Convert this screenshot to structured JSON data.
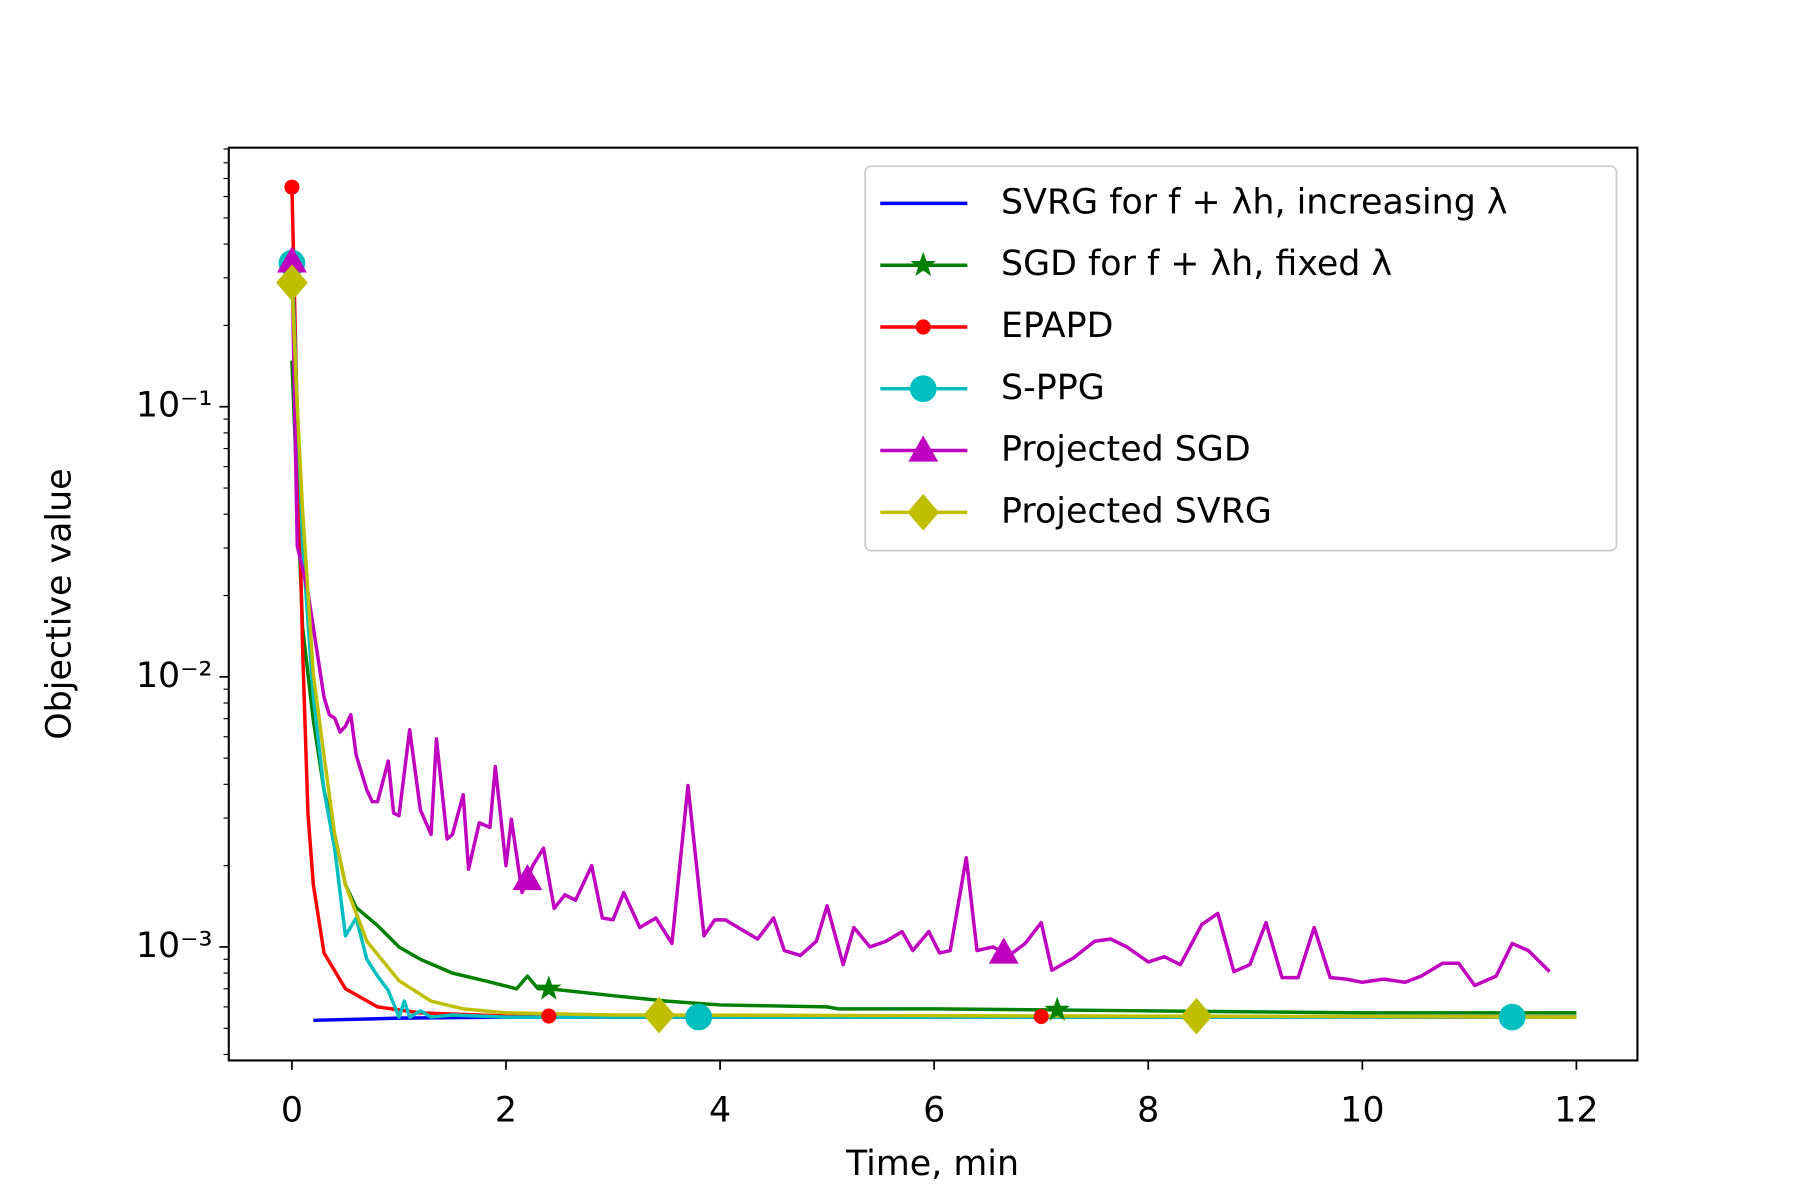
{
  "chart_data": {
    "type": "line",
    "xlabel": "Time, min",
    "ylabel": "Objective value",
    "log_y": true,
    "legend": "upper right",
    "xlim": [
      -0.59,
      12.57
    ],
    "ylim": [
      0.00038,
      0.91
    ],
    "xticks": [
      0,
      2,
      4,
      6,
      8,
      10,
      12
    ],
    "yticks": [
      {
        "value": 0.001,
        "label": "10⁻³"
      },
      {
        "value": 0.01,
        "label": "10⁻²"
      },
      {
        "value": 0.1,
        "label": "10⁻¹"
      }
    ],
    "yminorticks": [
      0.0004,
      0.0005,
      0.0006,
      0.0007,
      0.0008,
      0.0009,
      0.002,
      0.003,
      0.004,
      0.005,
      0.006,
      0.007,
      0.008,
      0.009,
      0.02,
      0.03,
      0.04,
      0.05,
      0.06,
      0.07,
      0.08,
      0.09,
      0.2,
      0.3,
      0.4,
      0.5,
      0.6,
      0.7,
      0.8,
      0.9
    ],
    "series": [
      {
        "name": "SVRG for f + λh, increasing λ",
        "color": "#0000ff",
        "marker": "none",
        "x": [
          0.2,
          1,
          2,
          12
        ],
        "values": [
          0.000535,
          0.000545,
          0.00055,
          0.00055
        ],
        "marker_x": []
      },
      {
        "name": "SGD for f + λh, fixed λ",
        "color": "#008000",
        "marker": "star",
        "x": [
          0,
          0.1,
          0.2,
          0.3,
          0.4,
          0.5,
          0.6,
          0.8,
          1,
          1.2,
          1.5,
          1.8,
          2.1,
          2.2,
          2.3,
          2.4,
          3,
          3.5,
          4,
          5,
          5.1,
          6,
          8,
          10,
          12
        ],
        "values": [
          0.148,
          0.0152,
          0.0069,
          0.0038,
          0.0026,
          0.0017,
          0.0014,
          0.0012,
          0.001,
          0.0009,
          0.0008,
          0.00075,
          0.0007,
          0.00078,
          0.0007,
          0.0007,
          0.00066,
          0.00063,
          0.00061,
          0.0006,
          0.00059,
          0.00059,
          0.00058,
          0.00057,
          0.00057
        ],
        "marker_x": [
          2.4,
          7.15
        ]
      },
      {
        "name": "EPAPD",
        "color": "#ff0000",
        "marker": "dot",
        "x": [
          0,
          0.1,
          0.15,
          0.2,
          0.3,
          0.5,
          0.8,
          1.2,
          2,
          12
        ],
        "values": [
          0.65,
          0.0126,
          0.0031,
          0.0017,
          0.00095,
          0.0007,
          0.0006,
          0.00057,
          0.000555,
          0.00055
        ],
        "marker_x": [
          0,
          2.4,
          7.0
        ]
      },
      {
        "name": "S-PPG",
        "color": "#00bfbf",
        "marker": "circle",
        "x": [
          0,
          0.1,
          0.2,
          0.3,
          0.4,
          0.5,
          0.6,
          0.7,
          0.8,
          0.9,
          1.0,
          1.05,
          1.1,
          1.2,
          1.3,
          1.5,
          2,
          12
        ],
        "values": [
          0.34,
          0.0305,
          0.0084,
          0.0038,
          0.0023,
          0.0011,
          0.00128,
          0.0009,
          0.00078,
          0.00069,
          0.00055,
          0.00063,
          0.00055,
          0.00058,
          0.00055,
          0.00056,
          0.00055,
          0.00055
        ],
        "marker_x": [
          0,
          3.8,
          11.4
        ]
      },
      {
        "name": "Projected SGD",
        "color": "#bf00bf",
        "marker": "triangle",
        "x": [
          0,
          0.05,
          0.15,
          0.25,
          0.3,
          0.35,
          0.4,
          0.45,
          0.5,
          0.55,
          0.6,
          0.7,
          0.75,
          0.8,
          0.9,
          0.95,
          1.0,
          1.1,
          1.2,
          1.3,
          1.35,
          1.45,
          1.5,
          1.6,
          1.65,
          1.75,
          1.85,
          1.9,
          2.0,
          2.05,
          2.15,
          2.25,
          2.35,
          2.45,
          2.55,
          2.65,
          2.8,
          2.9,
          3.0,
          3.1,
          3.25,
          3.4,
          3.55,
          3.7,
          3.85,
          3.95,
          4.05,
          4.2,
          4.35,
          4.5,
          4.6,
          4.75,
          4.9,
          5.0,
          5.15,
          5.25,
          5.4,
          5.55,
          5.7,
          5.8,
          5.95,
          6.05,
          6.15,
          6.3,
          6.4,
          6.55,
          6.7,
          6.85,
          7.0,
          7.1,
          7.3,
          7.5,
          7.65,
          7.8,
          8.0,
          8.15,
          8.3,
          8.5,
          8.65,
          8.8,
          8.95,
          9.1,
          9.25,
          9.4,
          9.55,
          9.7,
          9.85,
          10,
          10.2,
          10.4,
          10.55,
          10.75,
          10.9,
          11.05,
          11.25,
          11.4,
          11.55,
          11.75
        ],
        "values": [
          0.345,
          0.0305,
          0.0205,
          0.0113,
          0.0084,
          0.00724,
          0.00703,
          0.00625,
          0.00656,
          0.00724,
          0.00513,
          0.00381,
          0.00345,
          0.00345,
          0.00488,
          0.00313,
          0.00306,
          0.00637,
          0.00322,
          0.00261,
          0.00589,
          0.00251,
          0.00261,
          0.00366,
          0.00194,
          0.00288,
          0.00277,
          0.00465,
          0.002,
          0.00297,
          0.00159,
          0.002,
          0.00232,
          0.00139,
          0.00156,
          0.00149,
          0.002,
          0.00128,
          0.00126,
          0.00159,
          0.00118,
          0.00128,
          0.00103,
          0.00396,
          0.0011,
          0.00126,
          0.00126,
          0.00116,
          0.00107,
          0.00128,
          0.00097,
          0.00093,
          0.00105,
          0.00142,
          0.00086,
          0.00118,
          0.001,
          0.00105,
          0.00114,
          0.00097,
          0.00114,
          0.00095,
          0.00097,
          0.00214,
          0.00097,
          0.001,
          0.00093,
          0.00103,
          0.00123,
          0.00082,
          0.00091,
          0.00105,
          0.00107,
          0.001,
          0.00088,
          0.00092,
          0.00086,
          0.00121,
          0.00133,
          0.00081,
          0.00086,
          0.00123,
          0.00077,
          0.00077,
          0.00118,
          0.00077,
          0.00076,
          0.00074,
          0.00076,
          0.00074,
          0.00078,
          0.00087,
          0.00087,
          0.00072,
          0.00078,
          0.00103,
          0.00097,
          0.00081
        ],
        "marker_x": [
          0,
          2.2,
          6.65
        ]
      },
      {
        "name": "Projected SVRG",
        "color": "#bfbf00",
        "marker": "diamond",
        "x": [
          0,
          0.05,
          0.1,
          0.2,
          0.3,
          0.4,
          0.5,
          0.7,
          1.0,
          1.3,
          1.6,
          2,
          3,
          12
        ],
        "values": [
          0.288,
          0.1,
          0.041,
          0.0102,
          0.0051,
          0.0026,
          0.0017,
          0.00105,
          0.00075,
          0.00063,
          0.00059,
          0.00057,
          0.00056,
          0.00055
        ],
        "marker_x": [
          0,
          3.43,
          8.45
        ]
      }
    ]
  }
}
